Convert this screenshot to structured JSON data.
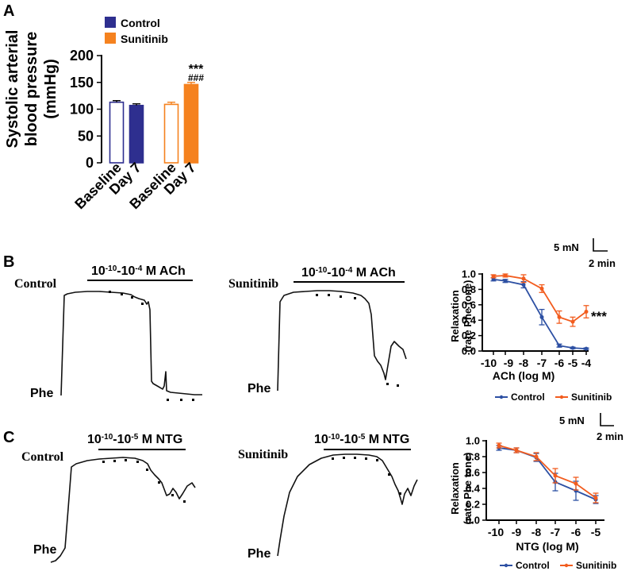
{
  "colors": {
    "control": "#2e2f8f",
    "sunitinib": "#f5821f",
    "line_control": "#2d50a3",
    "line_sunitinib": "#f25c1e"
  },
  "panel_labels": {
    "a": "A",
    "b": "B",
    "c": "C"
  },
  "chart_data": [
    {
      "id": "A",
      "type": "bar",
      "legend": [
        "Control",
        "Sunitinib"
      ],
      "categories": [
        "Baseline",
        "Day 7",
        "Baseline",
        "Day 7"
      ],
      "groups": [
        "Control",
        "Control",
        "Sunitinib",
        "Sunitinib"
      ],
      "filled": [
        false,
        true,
        false,
        true
      ],
      "values": [
        113,
        107,
        109,
        146
      ],
      "errors": [
        3,
        3,
        4,
        4
      ],
      "ylabel": [
        "Systolic arterial",
        "blood pressure",
        "(mmHg)"
      ],
      "ylim": [
        0,
        200
      ],
      "yticks": [
        "0",
        "50",
        "100",
        "150",
        "200"
      ],
      "annotations": [
        "***",
        "###"
      ]
    },
    {
      "id": "B",
      "type": "line",
      "x": [
        "-10",
        "-9",
        "-8",
        "-7",
        "-6",
        "-5",
        "-4"
      ],
      "series": [
        {
          "name": "Control",
          "values": [
            0.93,
            0.91,
            0.86,
            0.44,
            0.07,
            0.04,
            0.03
          ],
          "errors": [
            0.02,
            0.02,
            0.04,
            0.1,
            0.02,
            0.01,
            0.01
          ]
        },
        {
          "name": "Sunitinib",
          "values": [
            0.97,
            0.98,
            0.94,
            0.81,
            0.44,
            0.38,
            0.51
          ],
          "errors": [
            0.02,
            0.02,
            0.05,
            0.05,
            0.08,
            0.06,
            0.08
          ]
        }
      ],
      "ylabel": [
        "Relaxation",
        "(rate Phe tone)"
      ],
      "xlabel": "ACh (log M)",
      "ylim": [
        0,
        1.0
      ],
      "yticks": [
        "0.0",
        "0.2",
        "0.4",
        "0.6",
        "0.8",
        "1.0"
      ],
      "annotation": "***",
      "legend": [
        "Control",
        "Sunitinib"
      ]
    },
    {
      "id": "C",
      "type": "line",
      "x": [
        "-10",
        "-9",
        "-8",
        "-7",
        "-6",
        "-5"
      ],
      "series": [
        {
          "name": "Control",
          "values": [
            0.91,
            0.88,
            0.79,
            0.48,
            0.37,
            0.26
          ],
          "errors": [
            0.03,
            0.03,
            0.05,
            0.11,
            0.12,
            0.05
          ]
        },
        {
          "name": "Sunitinib",
          "values": [
            0.94,
            0.88,
            0.8,
            0.56,
            0.46,
            0.28
          ],
          "errors": [
            0.03,
            0.03,
            0.05,
            0.09,
            0.08,
            0.06
          ]
        }
      ],
      "ylabel": [
        "Relaxation",
        "(rate Phe tone)"
      ],
      "xlabel": "NTG (log M)",
      "ylim": [
        0,
        1.0
      ],
      "yticks": [
        "0.0",
        "0.2",
        "0.4",
        "0.6",
        "0.8",
        "1.0"
      ],
      "legend": [
        "Control",
        "Sunitinib"
      ]
    }
  ],
  "traces": {
    "b_control": {
      "title": "Control",
      "phe": "Phe",
      "dose_base1": "10",
      "dose_exp1": "-10",
      "dose_dash": "-",
      "dose_base2": "10",
      "dose_exp2": "-4",
      "dose_unit": " M ACh"
    },
    "b_sunitinib": {
      "title": "Sunitinib",
      "phe": "Phe",
      "dose_base1": "10",
      "dose_exp1": "-10",
      "dose_dash": "-",
      "dose_base2": "10",
      "dose_exp2": "-4",
      "dose_unit": " M ACh"
    },
    "c_control": {
      "title": "Control",
      "phe": "Phe",
      "dose_base1": "10",
      "dose_exp1": "-10",
      "dose_dash": "-",
      "dose_base2": "10",
      "dose_exp2": "-5",
      "dose_unit": " M NTG"
    },
    "c_sunitinib": {
      "title": "Sunitinib",
      "phe": "Phe",
      "dose_base1": "10",
      "dose_exp1": "-10",
      "dose_dash": "-",
      "dose_base2": "10",
      "dose_exp2": "-5",
      "dose_unit": " M NTG"
    }
  },
  "scale_bars": {
    "b": {
      "force": "5 mN",
      "time": "2 min"
    },
    "c": {
      "force": "5 mN",
      "time": "2 min"
    }
  }
}
